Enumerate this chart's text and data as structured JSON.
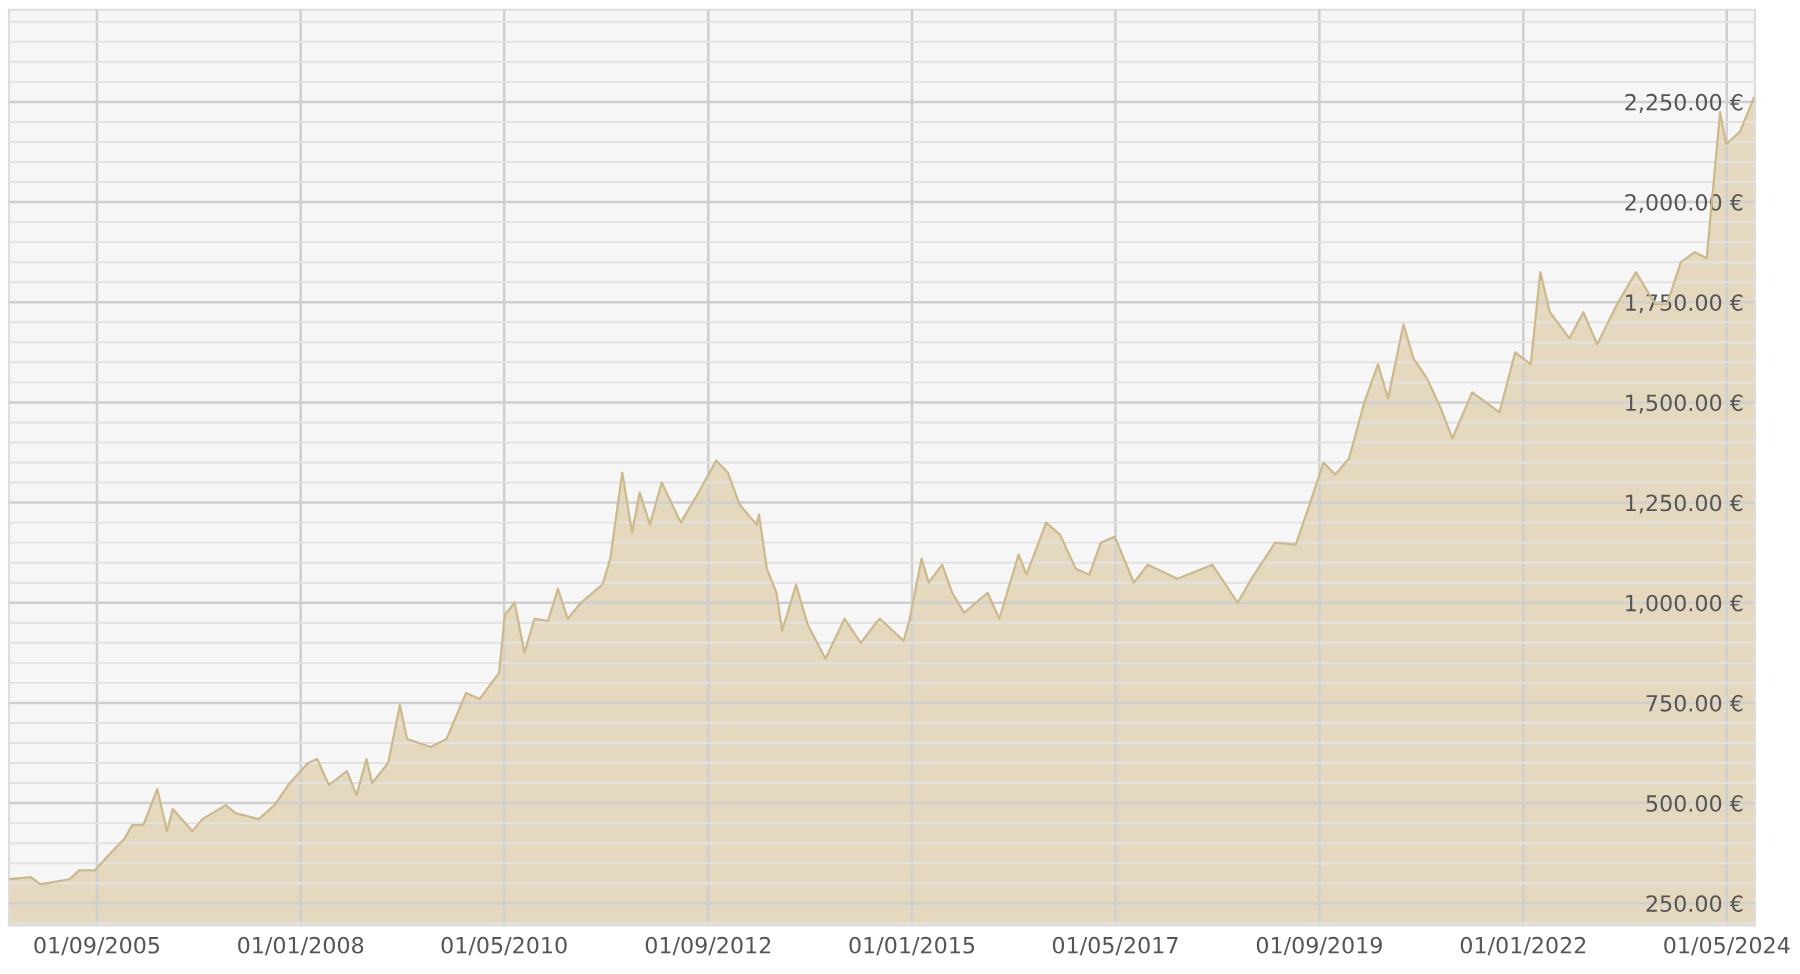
{
  "chart_data": {
    "type": "area",
    "x": [
      "2004-09-01",
      "2004-11-28",
      "2005-01-07",
      "2005-05-09",
      "2005-06-19",
      "2005-08-23",
      "2005-10-19",
      "2005-12-24",
      "2006-01-26",
      "2006-03-14",
      "2006-05-11",
      "2006-06-21",
      "2006-07-15",
      "2006-10-05",
      "2006-11-16",
      "2007-02-22",
      "2007-04-03",
      "2007-07-09",
      "2007-09-14",
      "2007-11-10",
      "2008-01-31",
      "2008-03-10",
      "2008-04-28",
      "2008-07-12",
      "2008-08-22",
      "2008-10-02",
      "2008-10-26",
      "2009-01-01",
      "2009-02-19",
      "2009-03-21",
      "2009-06-28",
      "2009-09-02",
      "2009-11-23",
      "2010-01-19",
      "2010-04-10",
      "2010-05-04",
      "2010-06-14",
      "2010-07-25",
      "2010-09-05",
      "2010-11-01",
      "2010-12-12",
      "2011-01-22",
      "2011-03-18",
      "2011-06-16",
      "2011-07-19",
      "2011-09-07",
      "2011-10-18",
      "2011-11-19",
      "2012-01-01",
      "2012-02-19",
      "2012-05-09",
      "2012-07-22",
      "2012-10-04",
      "2012-11-22",
      "2013-01-10",
      "2013-03-22",
      "2013-04-01",
      "2013-05-04",
      "2013-06-13",
      "2013-07-07",
      "2013-09-03",
      "2013-10-22",
      "2014-01-04",
      "2014-03-25",
      "2014-06-01",
      "2014-08-04",
      "2014-08-20",
      "2014-11-27",
      "2014-12-21",
      "2015-02-10",
      "2015-03-12",
      "2015-05-07",
      "2015-06-18",
      "2015-08-07",
      "2015-11-13",
      "2016-01-01",
      "2016-03-22",
      "2016-04-24",
      "2016-07-15",
      "2016-09-11",
      "2016-11-16",
      "2017-01-12",
      "2017-03-01",
      "2017-04-28",
      "2017-07-17",
      "2017-09-13",
      "2018-01-15",
      "2018-06-10",
      "2018-09-24",
      "2018-11-21",
      "2019-02-28",
      "2019-05-25",
      "2019-07-22",
      "2019-09-18",
      "2019-11-06",
      "2020-01-03",
      "2020-03-07",
      "2020-05-03",
      "2020-06-14",
      "2020-08-18",
      "2020-09-28",
      "2020-11-24",
      "2021-01-21",
      "2021-03-10",
      "2021-06-01",
      "2021-09-23",
      "2021-11-28",
      "2022-02-01",
      "2022-03-13",
      "2022-04-22",
      "2022-07-13",
      "2022-09-09",
      "2022-11-06",
      "2023-01-28",
      "2023-04-17",
      "2023-07-07",
      "2023-08-25",
      "2023-10-22",
      "2023-12-19",
      "2024-02-07",
      "2024-04-03",
      "2024-04-28",
      "2024-06-25",
      "2024-08-22"
    ],
    "series": [
      {
        "color": "#cdb98a",
        "values": [
          310,
          315,
          297,
          310,
          332,
          332,
          370,
          410,
          445,
          445,
          535,
          430,
          485,
          430,
          460,
          495,
          475,
          460,
          495,
          545,
          600,
          610,
          545,
          580,
          520,
          610,
          550,
          600,
          745,
          660,
          640,
          660,
          775,
          760,
          825,
          970,
          1000,
          875,
          960,
          955,
          1035,
          960,
          1000,
          1045,
          1110,
          1325,
          1175,
          1275,
          1195,
          1300,
          1200,
          1275,
          1355,
          1325,
          1245,
          1195,
          1220,
          1085,
          1025,
          930,
          1045,
          945,
          860,
          960,
          900,
          950,
          960,
          905,
          955,
          1110,
          1050,
          1095,
          1025,
          975,
          1025,
          960,
          1120,
          1070,
          1200,
          1170,
          1085,
          1070,
          1150,
          1165,
          1050,
          1095,
          1060,
          1095,
          1000,
          1060,
          1150,
          1145,
          1245,
          1350,
          1320,
          1360,
          1500,
          1595,
          1510,
          1695,
          1610,
          1560,
          1485,
          1410,
          1525,
          1475,
          1625,
          1595,
          1825,
          1725,
          1660,
          1725,
          1645,
          1745,
          1825,
          1745,
          1745,
          1850,
          1875,
          1860,
          2225,
          2145,
          2175,
          2260
        ]
      }
    ],
    "xlim": [
      "2004-08-29",
      "2024-08-27"
    ],
    "xticks": [
      {
        "value": "2005-09-01",
        "label": "01/09/2005"
      },
      {
        "value": "2008-01-01",
        "label": "01/01/2008"
      },
      {
        "value": "2010-05-01",
        "label": "01/05/2010"
      },
      {
        "value": "2012-09-01",
        "label": "01/09/2012"
      },
      {
        "value": "2015-01-01",
        "label": "01/01/2015"
      },
      {
        "value": "2017-05-01",
        "label": "01/05/2017"
      },
      {
        "value": "2019-09-01",
        "label": "01/09/2019"
      },
      {
        "value": "2022-01-01",
        "label": "01/01/2022"
      },
      {
        "value": "2024-05-01",
        "label": "01/05/2024"
      }
    ],
    "ylim": [
      195,
      2480
    ],
    "yticks": [
      {
        "value": 200,
        "label": null
      },
      {
        "value": 250,
        "label": "250.00 €"
      },
      {
        "value": 300,
        "label": null
      },
      {
        "value": 350,
        "label": null
      },
      {
        "value": 400,
        "label": null
      },
      {
        "value": 450,
        "label": null
      },
      {
        "value": 500,
        "label": "500.00 €"
      },
      {
        "value": 550,
        "label": null
      },
      {
        "value": 600,
        "label": null
      },
      {
        "value": 650,
        "label": null
      },
      {
        "value": 700,
        "label": null
      },
      {
        "value": 750,
        "label": "750.00 €"
      },
      {
        "value": 800,
        "label": null
      },
      {
        "value": 850,
        "label": null
      },
      {
        "value": 900,
        "label": null
      },
      {
        "value": 950,
        "label": null
      },
      {
        "value": 1000,
        "label": "1,000.00 €"
      },
      {
        "value": 1050,
        "label": null
      },
      {
        "value": 1100,
        "label": null
      },
      {
        "value": 1150,
        "label": null
      },
      {
        "value": 1200,
        "label": null
      },
      {
        "value": 1250,
        "label": "1,250.00 €"
      },
      {
        "value": 1300,
        "label": null
      },
      {
        "value": 1350,
        "label": null
      },
      {
        "value": 1400,
        "label": null
      },
      {
        "value": 1450,
        "label": null
      },
      {
        "value": 1500,
        "label": "1,500.00 €"
      },
      {
        "value": 1550,
        "label": null
      },
      {
        "value": 1600,
        "label": null
      },
      {
        "value": 1650,
        "label": null
      },
      {
        "value": 1700,
        "label": null
      },
      {
        "value": 1750,
        "label": "1,750.00 €"
      },
      {
        "value": 1800,
        "label": null
      },
      {
        "value": 1850,
        "label": null
      },
      {
        "value": 1900,
        "label": null
      },
      {
        "value": 1950,
        "label": null
      },
      {
        "value": 2000,
        "label": "2,000.00 €"
      },
      {
        "value": 2050,
        "label": null
      },
      {
        "value": 2100,
        "label": null
      },
      {
        "value": 2150,
        "label": null
      },
      {
        "value": 2200,
        "label": null
      },
      {
        "value": 2250,
        "label": "2,250.00 €"
      },
      {
        "value": 2300,
        "label": null
      },
      {
        "value": 2350,
        "label": null
      },
      {
        "value": 2400,
        "label": null
      },
      {
        "value": 2450,
        "label": null
      }
    ],
    "grid": true
  }
}
